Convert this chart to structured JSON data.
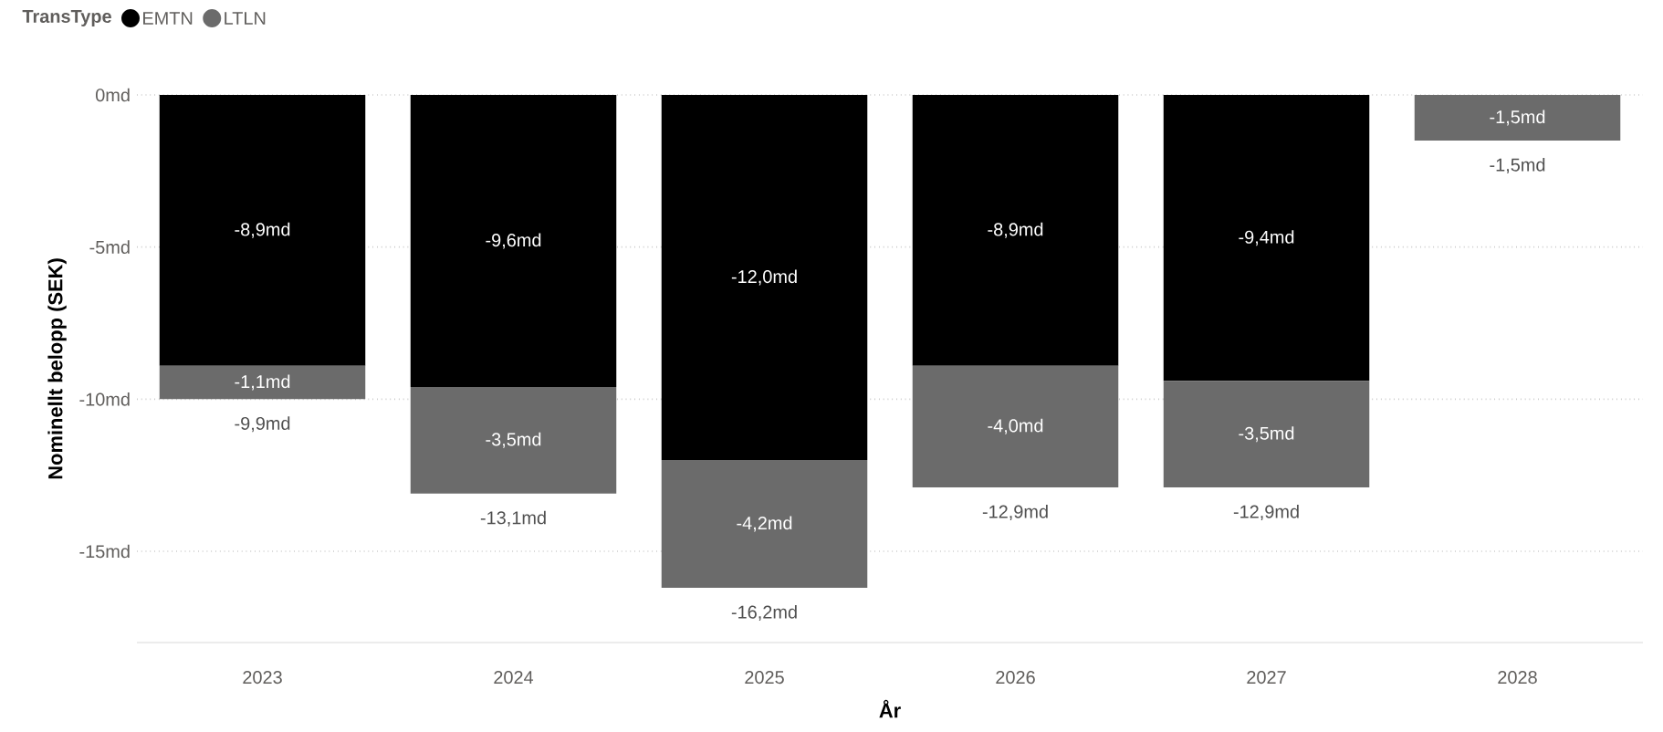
{
  "chart_data": {
    "type": "bar",
    "stacked": true,
    "xlabel": "År",
    "ylabel": "Nominellt belopp (SEK)",
    "legend_title": "TransType",
    "legend": "top left",
    "categories": [
      "2023",
      "2024",
      "2025",
      "2026",
      "2027",
      "2028"
    ],
    "series": [
      {
        "name": "EMTN",
        "color": "#000000",
        "values": [
          -8.9,
          -9.6,
          -12.0,
          -8.9,
          -9.4,
          null
        ],
        "value_labels": [
          "-8,9md",
          "-9,6md",
          "-12,0md",
          "-8,9md",
          "-9,4md",
          null
        ]
      },
      {
        "name": "LTLN",
        "color": "#6b6b6b",
        "values": [
          -1.1,
          -3.5,
          -4.2,
          -4.0,
          -3.5,
          -1.5
        ],
        "value_labels": [
          "-1,1md",
          "-3,5md",
          "-4,2md",
          "-4,0md",
          "-3,5md",
          "-1,5md"
        ]
      }
    ],
    "totals": [
      "-9,9md",
      "-13,1md",
      "-16,2md",
      "-12,9md",
      "-12,9md",
      "-1,5md"
    ],
    "ylim": [
      -18,
      0
    ],
    "yticks": [
      {
        "value": 0,
        "label": "0md"
      },
      {
        "value": -5,
        "label": "-5md"
      },
      {
        "value": -10,
        "label": "-10md"
      },
      {
        "value": -15,
        "label": "-15md"
      }
    ],
    "grid": "y"
  }
}
